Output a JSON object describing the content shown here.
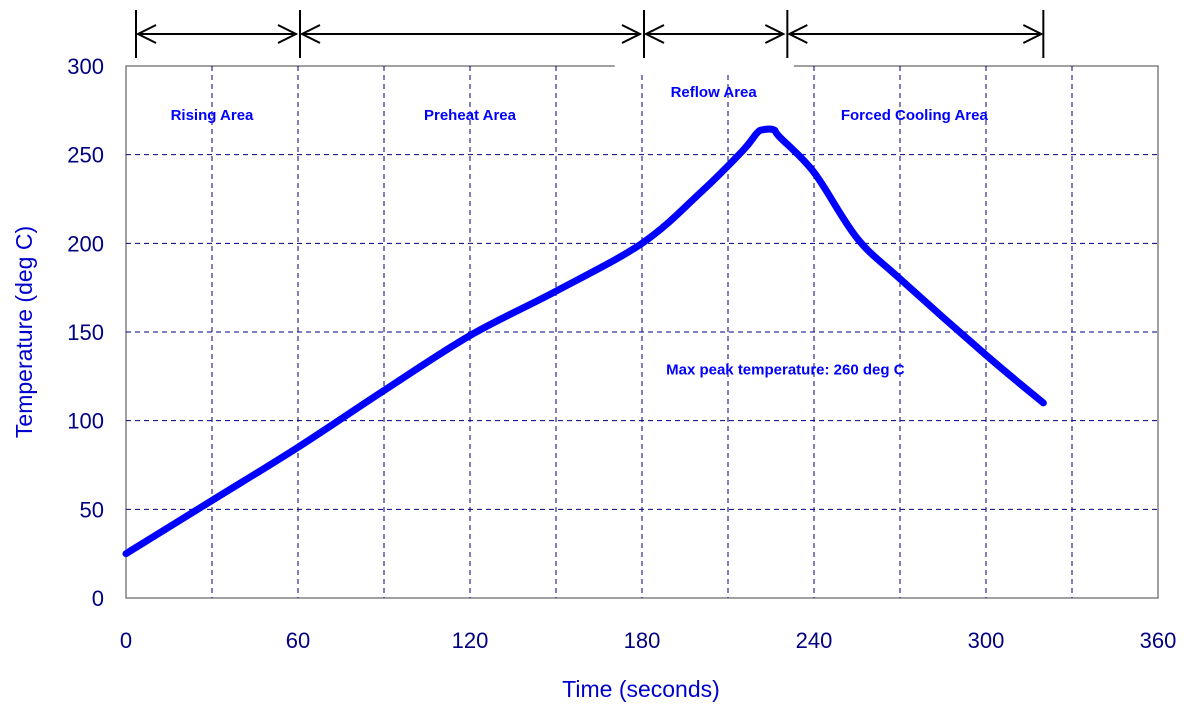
{
  "colors": {
    "axis_text": "#0000cc",
    "tick_text": "#000080",
    "curve": "#0000ff",
    "grid": "#000080",
    "arrow": "#000000",
    "frame": "#808080"
  },
  "chart_data": {
    "type": "line",
    "title": "",
    "xlabel": "Time (seconds)",
    "ylabel": "Temperature (deg C)",
    "xlim": [
      0,
      360
    ],
    "ylim": [
      0,
      300
    ],
    "xticks": [
      0,
      60,
      120,
      180,
      240,
      300,
      360
    ],
    "yticks": [
      0,
      50,
      100,
      150,
      200,
      250,
      300
    ],
    "grid": true,
    "series": [
      {
        "x": [
          0,
          30,
          60,
          90,
          120,
          150,
          180,
          200,
          215,
          220,
          222,
          226,
          228,
          240,
          255,
          270,
          300,
          320
        ],
        "y": [
          25,
          55,
          85,
          117,
          148,
          173,
          200,
          228,
          252,
          262,
          264,
          264,
          260,
          240,
          203,
          180,
          137,
          110
        ]
      }
    ],
    "zones": [
      {
        "label": "Rising Area",
        "start": 0,
        "end": 60
      },
      {
        "label": "Preheat Area",
        "start": 60,
        "end": 180
      },
      {
        "label": "Reflow Area",
        "start": 180,
        "end": 230
      },
      {
        "label": "Forced Cooling Area",
        "start": 230,
        "end": 320
      }
    ],
    "annotations": [
      {
        "text": "Max peak temperature: 260 deg C",
        "x": 230,
        "y": 126
      }
    ]
  }
}
